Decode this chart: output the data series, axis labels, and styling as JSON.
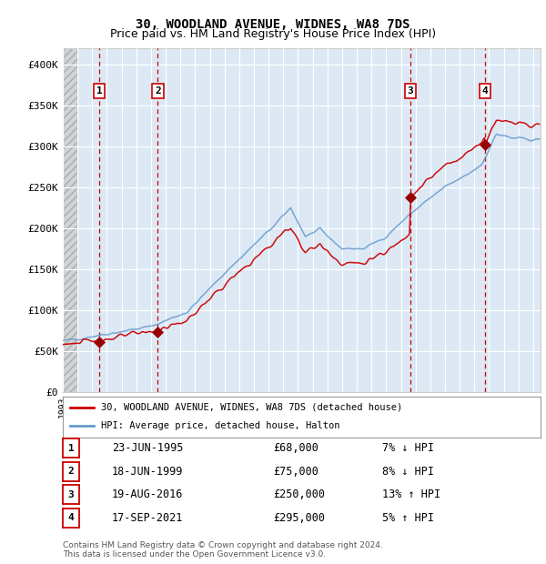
{
  "title": "30, WOODLAND AVENUE, WIDNES, WA8 7DS",
  "subtitle": "Price paid vs. HM Land Registry's House Price Index (HPI)",
  "legend_line1": "30, WOODLAND AVENUE, WIDNES, WA8 7DS (detached house)",
  "legend_line2": "HPI: Average price, detached house, Halton",
  "footnote1": "Contains HM Land Registry data © Crown copyright and database right 2024.",
  "footnote2": "This data is licensed under the Open Government Licence v3.0.",
  "transactions": [
    {
      "num": 1,
      "date": "23-JUN-1995",
      "price": 68000,
      "pct": "7%",
      "dir": "↓",
      "year": 1995.47
    },
    {
      "num": 2,
      "date": "18-JUN-1999",
      "price": 75000,
      "pct": "8%",
      "dir": "↓",
      "year": 1999.46
    },
    {
      "num": 3,
      "date": "19-AUG-2016",
      "price": 250000,
      "pct": "13%",
      "dir": "↑",
      "year": 2016.63
    },
    {
      "num": 4,
      "date": "17-SEP-2021",
      "price": 295000,
      "pct": "5%",
      "dir": "↑",
      "year": 2021.71
    }
  ],
  "ylim": [
    0,
    420000
  ],
  "xlim_start": 1993.0,
  "xlim_end": 2025.5,
  "yticks": [
    0,
    50000,
    100000,
    150000,
    200000,
    250000,
    300000,
    350000,
    400000
  ],
  "ytick_labels": [
    "£0",
    "£50K",
    "£100K",
    "£150K",
    "£200K",
    "£250K",
    "£300K",
    "£350K",
    "£400K"
  ],
  "bg_color": "#dce9f5",
  "plot_bg": "#ffffff",
  "red_line_color": "#cc0000",
  "blue_line_color": "#6699cc",
  "vline_color": "#cc0000",
  "transaction_dot_color": "#990000",
  "grid_color": "#ffffff",
  "box_edge_color": "#cc0000",
  "title_fontsize": 10,
  "subtitle_fontsize": 9,
  "hpi_anchors_x": [
    1993.0,
    1995.0,
    1999.0,
    2001.5,
    2004.0,
    2007.5,
    2008.5,
    2009.5,
    2010.5,
    2012.0,
    2013.5,
    2015.0,
    2016.5,
    2017.5,
    2019.0,
    2020.5,
    2021.5,
    2022.5,
    2023.5,
    2025.0
  ],
  "hpi_anchors_y": [
    62000,
    68000,
    80000,
    98000,
    145000,
    205000,
    225000,
    190000,
    198000,
    175000,
    175000,
    190000,
    215000,
    230000,
    250000,
    265000,
    278000,
    315000,
    310000,
    308000
  ],
  "prop_scales": [
    0.93,
    0.92,
    0.9,
    1.1,
    1.06
  ],
  "noise_sigma_hpi": 2,
  "noise_sigma_prop": 1.5,
  "noise_scale_hpi": 2000,
  "noise_scale_prop": 3000
}
